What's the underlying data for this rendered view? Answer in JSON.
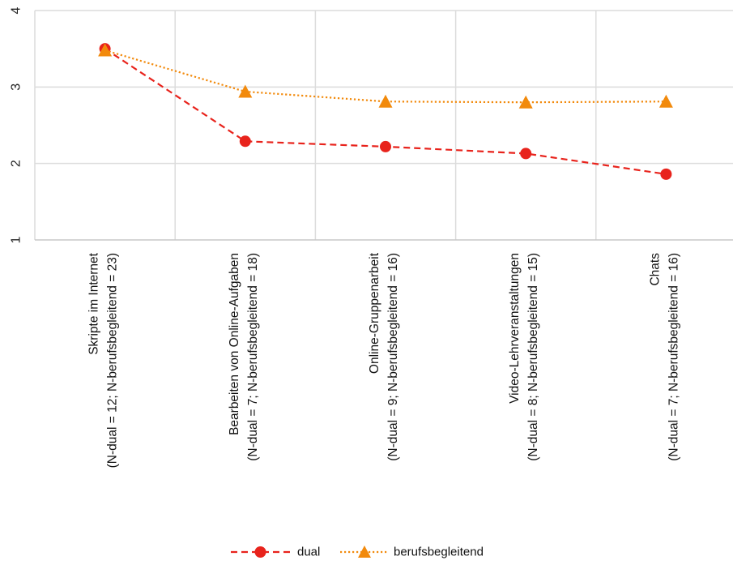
{
  "chart_data": {
    "type": "line",
    "title": "",
    "xlabel": "",
    "ylabel": "",
    "ylim": [
      1,
      4
    ],
    "yticks": [
      "1",
      "2",
      "3",
      "4"
    ],
    "categories": [
      [
        "Skripte im Internet",
        "(N-dual = 12; N-berufsbegleitend = 23)"
      ],
      [
        "Bearbeiten von Online-Aufgaben",
        "(N-dual = 7; N-berufsbegleitend = 18)"
      ],
      [
        "Online-Gruppenarbeit",
        "(N-dual = 9; N-berufsbegleitend = 16)"
      ],
      [
        "Video-Lehrveranstaltungen",
        "(N-dual = 8; N-berufsbegleitend = 15)"
      ],
      [
        "Chats",
        "(N-dual = 7; N-berufsbegleitend = 16)"
      ]
    ],
    "series": [
      {
        "name": "dual",
        "color": "#e8231c",
        "dash": "dashed",
        "marker": "circle",
        "values": [
          3.5,
          2.29,
          2.22,
          2.13,
          1.86
        ]
      },
      {
        "name": "berufsbegleitend",
        "color": "#f28a0c",
        "dash": "dotted",
        "marker": "triangle",
        "values": [
          3.48,
          2.94,
          2.81,
          2.8,
          2.81
        ]
      }
    ],
    "grid": true,
    "legend": "bottom-center"
  }
}
